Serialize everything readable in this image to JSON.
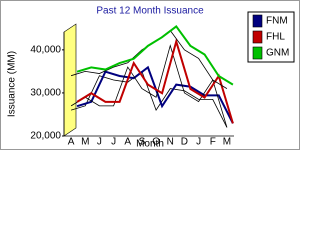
{
  "chart_data": {
    "type": "line",
    "title": "Past 12 Month Issuance",
    "x_label": "Month",
    "y_label": "Issuance (MM)",
    "categories": [
      "A",
      "M",
      "J",
      "J",
      "A",
      "S",
      "O",
      "N",
      "D",
      "J",
      "F",
      "M"
    ],
    "series": [
      {
        "name": "FNM",
        "color": "#00007f",
        "values": [
          26000,
          27000,
          34000,
          33000,
          32500,
          35000,
          26000,
          31000,
          30500,
          28500,
          28500,
          22000
        ]
      },
      {
        "name": "FHL",
        "color": "#c00000",
        "values": [
          27000,
          29000,
          27000,
          27000,
          36000,
          31000,
          29000,
          41000,
          30000,
          28000,
          33000,
          22000
        ]
      },
      {
        "name": "GNM",
        "color": "#00c000",
        "values": [
          34000,
          35000,
          34500,
          36000,
          37000,
          40000,
          42000,
          44500,
          40000,
          38000,
          33000,
          31000
        ]
      }
    ],
    "ylim": [
      20000,
      46000
    ],
    "yticks": [
      {
        "value": 20000,
        "label": "20,000"
      },
      {
        "value": 30000,
        "label": "30,000"
      },
      {
        "value": 40000,
        "label": "40,000"
      }
    ]
  }
}
